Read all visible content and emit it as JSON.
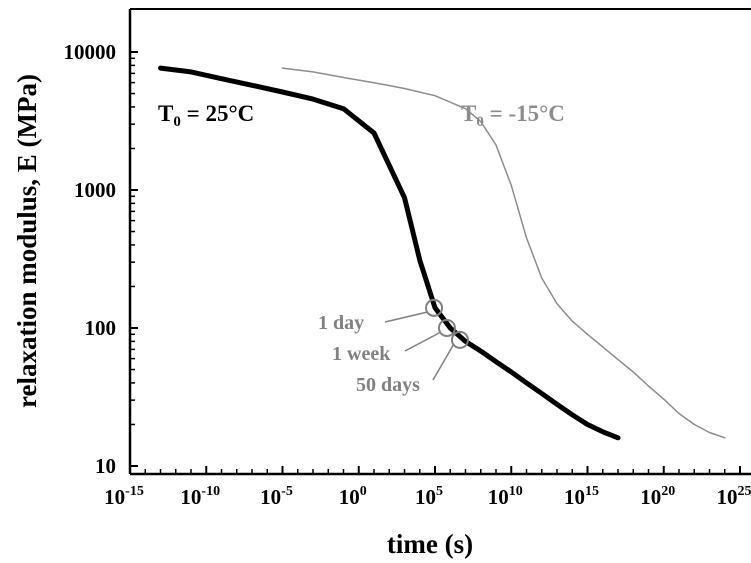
{
  "chart_data": {
    "type": "line",
    "title": "",
    "xlabel": "time (s)",
    "ylabel": "relaxation modulus, E (MPa)",
    "xscale": "log",
    "yscale": "log",
    "xlim": [
      1e-15,
      1e+25
    ],
    "ylim": [
      10,
      10000
    ],
    "grid": false,
    "x_tick_labels": [
      {
        "base": "10",
        "exp": "-15"
      },
      {
        "base": "10",
        "exp": "-10"
      },
      {
        "base": "10",
        "exp": "-5"
      },
      {
        "base": "10",
        "exp": "0"
      },
      {
        "base": "10",
        "exp": "5"
      },
      {
        "base": "10",
        "exp": "10"
      },
      {
        "base": "10",
        "exp": "15"
      },
      {
        "base": "10",
        "exp": "20"
      },
      {
        "base": "10",
        "exp": "25"
      }
    ],
    "y_tick_labels": [
      "10",
      "100",
      "1000",
      "10000"
    ],
    "series": [
      {
        "label_main": "T",
        "label_sub": "0",
        "label_rest": " = 25°C",
        "color": "#000000",
        "x": [
          1e-13,
          1e-11,
          1e-09,
          1e-07,
          1e-05,
          0.001,
          0.1,
          10,
          1000,
          10000.0,
          100000.0,
          1000000.0,
          10000000.0,
          100000000.0,
          1000000000.0,
          10000000000.0,
          100000000000.0,
          1000000000000.0,
          10000000000000.0,
          100000000000000.0,
          1000000000000000.0,
          1e+16,
          1e+17
        ],
        "y": [
          7650,
          7170,
          6400,
          5740,
          5130,
          4560,
          3880,
          2590,
          880,
          310,
          140,
          100,
          80,
          68,
          57,
          48,
          40,
          33.5,
          28,
          23.5,
          20,
          17.7,
          16
        ]
      },
      {
        "label_main": "T",
        "label_sub": "0",
        "label_rest": " = -15°C",
        "color": "#8c8c8c",
        "x": [
          1e-05,
          0.001,
          0.1,
          10,
          1000,
          100000.0,
          10000000.0,
          100000000.0,
          1000000000.0,
          10000000000.0,
          100000000000.0,
          1000000000000.0,
          10000000000000.0,
          100000000000000.0,
          1000000000000000.0,
          1e+16,
          1e+17,
          1e+18,
          1e+19,
          1e+20,
          1e+21,
          1e+22,
          1e+23,
          1e+24
        ],
        "y": [
          7650,
          7170,
          6530,
          5990,
          5440,
          4820,
          3880,
          3130,
          2120,
          1080,
          450,
          230,
          150,
          112,
          90,
          73,
          59,
          48,
          38,
          30.5,
          24,
          20,
          17.5,
          16
        ]
      }
    ],
    "annotations": [
      {
        "text": "1 day",
        "x": 86400,
        "y": 140
      },
      {
        "text": "1 week",
        "x": 604800,
        "y": 100
      },
      {
        "text": "50 days",
        "x": 4320000,
        "y": 82
      }
    ]
  }
}
